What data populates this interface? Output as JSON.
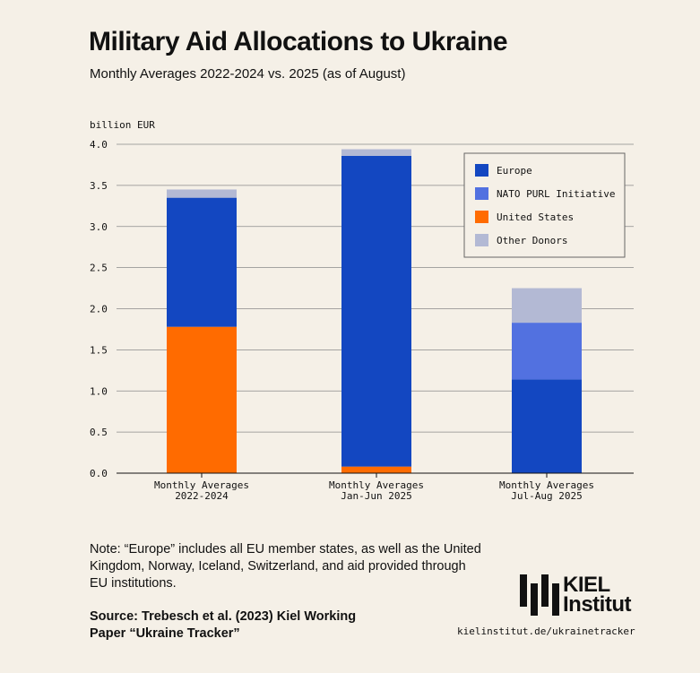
{
  "header": {
    "title": "Military Aid Allocations to Ukraine",
    "subtitle": "Monthly Averages 2022-2024 vs. 2025 (as of August)"
  },
  "chart_data": {
    "type": "bar",
    "stacked": true,
    "ylabel": "billion EUR",
    "ylim": [
      0,
      4.0
    ],
    "yticks": [
      "0.0",
      "0.5",
      "1.0",
      "1.5",
      "2.0",
      "2.5",
      "3.0",
      "3.5",
      "4.0"
    ],
    "categories": [
      [
        "Monthly Averages",
        "2022-2024"
      ],
      [
        "Monthly Averages",
        "Jan-Jun 2025"
      ],
      [
        "Monthly Averages",
        "Jul-Aug 2025"
      ]
    ],
    "series": [
      {
        "name": "United States",
        "color": "#ff6b00",
        "values": [
          1.78,
          0.08,
          0.0
        ]
      },
      {
        "name": "Europe",
        "color": "#1347c1",
        "values": [
          1.57,
          3.78,
          1.14
        ]
      },
      {
        "name": "NATO PURL Initiative",
        "color": "#5271e0",
        "values": [
          0.0,
          0.0,
          0.69
        ]
      },
      {
        "name": "Other Donors",
        "color": "#b3b9d4",
        "values": [
          0.1,
          0.08,
          0.42
        ]
      }
    ],
    "legend": {
      "position": "top-right",
      "order": [
        "Europe",
        "NATO PURL Initiative",
        "United States",
        "Other Donors"
      ]
    },
    "grid": true
  },
  "note": "Note: “Europe” includes all EU member states, as well as the United Kingdom, Norway, Iceland, Switzerland, and aid provided through EU institutions.",
  "source": "Source: Trebesch et al. (2023) Kiel Working Paper “Ukraine Tracker”",
  "logo": {
    "line1": "KIEL",
    "line2": "Institut",
    "url": "kielinstitut.de/ukrainetracker"
  }
}
